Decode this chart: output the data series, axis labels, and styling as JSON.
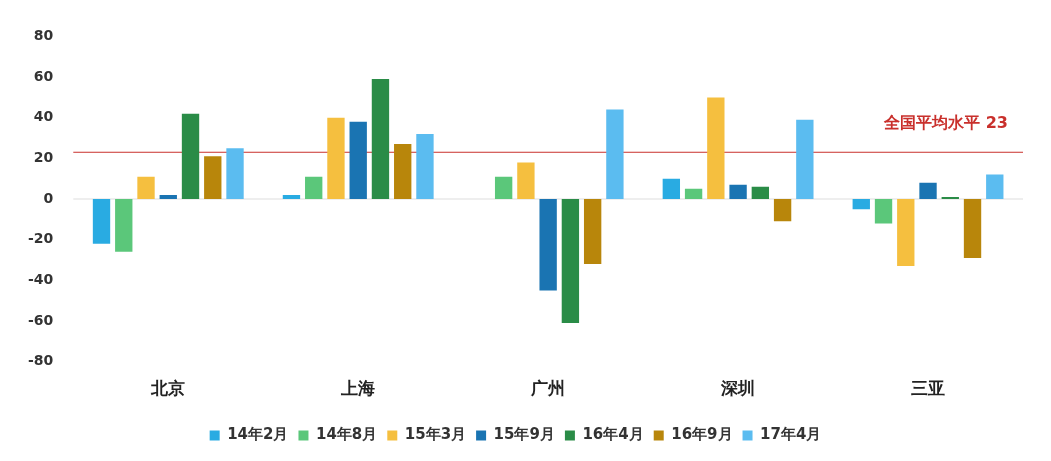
{
  "chart_data": {
    "type": "bar",
    "categories": [
      "北京",
      "上海",
      "广州",
      "深圳",
      "三亚"
    ],
    "series": [
      {
        "name": "14年2月",
        "color": "#29abe2",
        "values": [
          -22,
          2,
          null,
          10,
          -5
        ]
      },
      {
        "name": "14年8月",
        "color": "#5bc77a",
        "values": [
          -26,
          11,
          11,
          5,
          -12
        ]
      },
      {
        "name": "15年3月",
        "color": "#f5bf3f",
        "values": [
          11,
          40,
          18,
          50,
          -33
        ]
      },
      {
        "name": "15年9月",
        "color": "#1a74b2",
        "values": [
          2,
          38,
          -45,
          7,
          8
        ]
      },
      {
        "name": "16年4月",
        "color": "#2a8c47",
        "values": [
          42,
          59,
          -61,
          6,
          1
        ]
      },
      {
        "name": "16年9月",
        "color": "#b8860b",
        "values": [
          21,
          27,
          -32,
          -11,
          -29
        ]
      },
      {
        "name": "17年4月",
        "color": "#5bbcf0",
        "values": [
          25,
          32,
          44,
          39,
          12
        ]
      }
    ],
    "ylim": [
      -80,
      80
    ],
    "yticks": [
      -80,
      -60,
      -40,
      -20,
      0,
      20,
      40,
      60,
      80
    ],
    "grid": false,
    "legend": "bottom",
    "ref_lines": [
      {
        "axis": "y",
        "value": 0,
        "color": "#dddddd"
      },
      {
        "axis": "y",
        "value": 23,
        "label": "全国平均水平 23",
        "color": "#c9302c"
      }
    ]
  }
}
